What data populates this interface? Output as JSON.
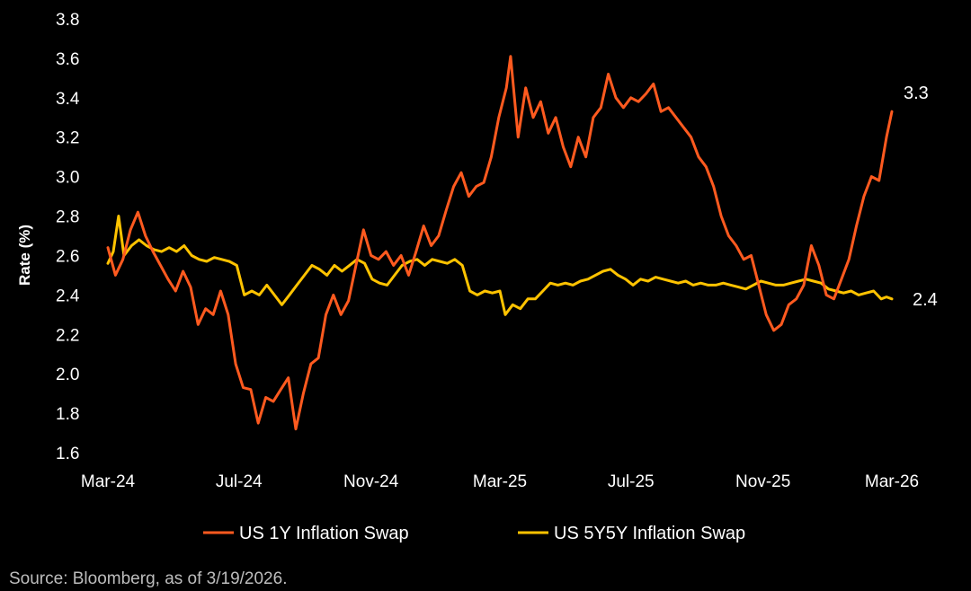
{
  "chart_data": {
    "type": "line",
    "title": "",
    "ylabel": "Rate (%)",
    "xlabel": "",
    "ylim": [
      1.6,
      3.8
    ],
    "yticks": [
      "1.6",
      "1.8",
      "2.0",
      "2.2",
      "2.4",
      "2.6",
      "2.8",
      "3.0",
      "3.2",
      "3.4",
      "3.6",
      "3.8"
    ],
    "xlim": [
      "2024-03-19",
      "2026-03-19"
    ],
    "xticks": [
      {
        "label": "Mar-24",
        "date": "2024-03-19"
      },
      {
        "label": "Jul-24",
        "date": "2024-07-19"
      },
      {
        "label": "Nov-24",
        "date": "2024-11-19"
      },
      {
        "label": "Mar-25",
        "date": "2025-03-19"
      },
      {
        "label": "Jul-25",
        "date": "2025-07-19"
      },
      {
        "label": "Nov-25",
        "date": "2025-11-19"
      },
      {
        "label": "Mar-26",
        "date": "2026-03-19"
      }
    ],
    "grid": false,
    "legend_position": "bottom",
    "series": [
      {
        "name": "US 1Y Inflation Swap",
        "color": "#FF5A1F",
        "end_label": "3.3",
        "points": [
          [
            "2024-03-19",
            2.64
          ],
          [
            "2024-03-26",
            2.5
          ],
          [
            "2024-04-02",
            2.58
          ],
          [
            "2024-04-09",
            2.73
          ],
          [
            "2024-04-16",
            2.82
          ],
          [
            "2024-04-23",
            2.7
          ],
          [
            "2024-04-30",
            2.62
          ],
          [
            "2024-05-07",
            2.55
          ],
          [
            "2024-05-14",
            2.48
          ],
          [
            "2024-05-21",
            2.42
          ],
          [
            "2024-05-28",
            2.52
          ],
          [
            "2024-06-04",
            2.44
          ],
          [
            "2024-06-11",
            2.25
          ],
          [
            "2024-06-18",
            2.33
          ],
          [
            "2024-06-25",
            2.3
          ],
          [
            "2024-07-02",
            2.42
          ],
          [
            "2024-07-09",
            2.3
          ],
          [
            "2024-07-16",
            2.05
          ],
          [
            "2024-07-23",
            1.93
          ],
          [
            "2024-07-30",
            1.92
          ],
          [
            "2024-08-06",
            1.75
          ],
          [
            "2024-08-13",
            1.88
          ],
          [
            "2024-08-20",
            1.86
          ],
          [
            "2024-08-27",
            1.92
          ],
          [
            "2024-09-03",
            1.98
          ],
          [
            "2024-09-10",
            1.72
          ],
          [
            "2024-09-17",
            1.9
          ],
          [
            "2024-09-24",
            2.05
          ],
          [
            "2024-10-01",
            2.08
          ],
          [
            "2024-10-08",
            2.3
          ],
          [
            "2024-10-15",
            2.4
          ],
          [
            "2024-10-22",
            2.3
          ],
          [
            "2024-10-29",
            2.37
          ],
          [
            "2024-11-05",
            2.55
          ],
          [
            "2024-11-12",
            2.73
          ],
          [
            "2024-11-19",
            2.6
          ],
          [
            "2024-11-26",
            2.58
          ],
          [
            "2024-12-03",
            2.62
          ],
          [
            "2024-12-10",
            2.55
          ],
          [
            "2024-12-17",
            2.6
          ],
          [
            "2024-12-24",
            2.5
          ],
          [
            "2024-12-31",
            2.62
          ],
          [
            "2025-01-07",
            2.75
          ],
          [
            "2025-01-14",
            2.65
          ],
          [
            "2025-01-21",
            2.7
          ],
          [
            "2025-01-28",
            2.83
          ],
          [
            "2025-02-04",
            2.95
          ],
          [
            "2025-02-11",
            3.02
          ],
          [
            "2025-02-18",
            2.9
          ],
          [
            "2025-02-25",
            2.95
          ],
          [
            "2025-03-04",
            2.97
          ],
          [
            "2025-03-11",
            3.1
          ],
          [
            "2025-03-18",
            3.3
          ],
          [
            "2025-03-25",
            3.45
          ],
          [
            "2025-03-29",
            3.61
          ],
          [
            "2025-04-05",
            3.2
          ],
          [
            "2025-04-12",
            3.45
          ],
          [
            "2025-04-19",
            3.3
          ],
          [
            "2025-04-26",
            3.38
          ],
          [
            "2025-05-03",
            3.22
          ],
          [
            "2025-05-10",
            3.3
          ],
          [
            "2025-05-17",
            3.15
          ],
          [
            "2025-05-24",
            3.05
          ],
          [
            "2025-05-31",
            3.2
          ],
          [
            "2025-06-07",
            3.1
          ],
          [
            "2025-06-14",
            3.3
          ],
          [
            "2025-06-21",
            3.35
          ],
          [
            "2025-06-28",
            3.52
          ],
          [
            "2025-07-05",
            3.4
          ],
          [
            "2025-07-12",
            3.35
          ],
          [
            "2025-07-19",
            3.4
          ],
          [
            "2025-07-26",
            3.38
          ],
          [
            "2025-08-02",
            3.42
          ],
          [
            "2025-08-09",
            3.47
          ],
          [
            "2025-08-16",
            3.33
          ],
          [
            "2025-08-23",
            3.35
          ],
          [
            "2025-08-30",
            3.3
          ],
          [
            "2025-09-06",
            3.25
          ],
          [
            "2025-09-13",
            3.2
          ],
          [
            "2025-09-20",
            3.1
          ],
          [
            "2025-09-27",
            3.05
          ],
          [
            "2025-10-04",
            2.95
          ],
          [
            "2025-10-11",
            2.8
          ],
          [
            "2025-10-18",
            2.7
          ],
          [
            "2025-10-25",
            2.65
          ],
          [
            "2025-11-01",
            2.58
          ],
          [
            "2025-11-08",
            2.6
          ],
          [
            "2025-11-15",
            2.45
          ],
          [
            "2025-11-22",
            2.3
          ],
          [
            "2025-11-29",
            2.22
          ],
          [
            "2025-12-06",
            2.25
          ],
          [
            "2025-12-13",
            2.35
          ],
          [
            "2025-12-20",
            2.38
          ],
          [
            "2025-12-27",
            2.45
          ],
          [
            "2026-01-03",
            2.65
          ],
          [
            "2026-01-10",
            2.55
          ],
          [
            "2026-01-17",
            2.4
          ],
          [
            "2026-01-24",
            2.38
          ],
          [
            "2026-01-31",
            2.48
          ],
          [
            "2026-02-07",
            2.58
          ],
          [
            "2026-02-14",
            2.75
          ],
          [
            "2026-02-21",
            2.9
          ],
          [
            "2026-02-28",
            3.0
          ],
          [
            "2026-03-07",
            2.98
          ],
          [
            "2026-03-14",
            3.2
          ],
          [
            "2026-03-19",
            3.33
          ]
        ]
      },
      {
        "name": "US 5Y5Y Inflation Swap",
        "color": "#FFC300",
        "end_label": "2.4",
        "points": [
          [
            "2024-03-19",
            2.56
          ],
          [
            "2024-03-24",
            2.62
          ],
          [
            "2024-03-29",
            2.8
          ],
          [
            "2024-04-03",
            2.6
          ],
          [
            "2024-04-10",
            2.65
          ],
          [
            "2024-04-17",
            2.68
          ],
          [
            "2024-04-24",
            2.65
          ],
          [
            "2024-05-01",
            2.63
          ],
          [
            "2024-05-08",
            2.62
          ],
          [
            "2024-05-15",
            2.64
          ],
          [
            "2024-05-22",
            2.62
          ],
          [
            "2024-05-29",
            2.65
          ],
          [
            "2024-06-05",
            2.6
          ],
          [
            "2024-06-12",
            2.58
          ],
          [
            "2024-06-19",
            2.57
          ],
          [
            "2024-06-26",
            2.59
          ],
          [
            "2024-07-03",
            2.58
          ],
          [
            "2024-07-10",
            2.57
          ],
          [
            "2024-07-17",
            2.55
          ],
          [
            "2024-07-24",
            2.4
          ],
          [
            "2024-07-31",
            2.42
          ],
          [
            "2024-08-07",
            2.4
          ],
          [
            "2024-08-14",
            2.45
          ],
          [
            "2024-08-21",
            2.4
          ],
          [
            "2024-08-28",
            2.35
          ],
          [
            "2024-09-04",
            2.4
          ],
          [
            "2024-09-11",
            2.45
          ],
          [
            "2024-09-18",
            2.5
          ],
          [
            "2024-09-25",
            2.55
          ],
          [
            "2024-10-02",
            2.53
          ],
          [
            "2024-10-09",
            2.5
          ],
          [
            "2024-10-16",
            2.55
          ],
          [
            "2024-10-23",
            2.52
          ],
          [
            "2024-10-30",
            2.55
          ],
          [
            "2024-11-06",
            2.58
          ],
          [
            "2024-11-13",
            2.56
          ],
          [
            "2024-11-20",
            2.48
          ],
          [
            "2024-11-27",
            2.46
          ],
          [
            "2024-12-04",
            2.45
          ],
          [
            "2024-12-11",
            2.5
          ],
          [
            "2024-12-18",
            2.55
          ],
          [
            "2024-12-25",
            2.57
          ],
          [
            "2025-01-01",
            2.58
          ],
          [
            "2025-01-08",
            2.55
          ],
          [
            "2025-01-15",
            2.58
          ],
          [
            "2025-01-22",
            2.57
          ],
          [
            "2025-01-29",
            2.56
          ],
          [
            "2025-02-05",
            2.58
          ],
          [
            "2025-02-12",
            2.55
          ],
          [
            "2025-02-19",
            2.42
          ],
          [
            "2025-02-26",
            2.4
          ],
          [
            "2025-03-05",
            2.42
          ],
          [
            "2025-03-12",
            2.41
          ],
          [
            "2025-03-19",
            2.42
          ],
          [
            "2025-03-24",
            2.3
          ],
          [
            "2025-03-31",
            2.35
          ],
          [
            "2025-04-07",
            2.33
          ],
          [
            "2025-04-14",
            2.38
          ],
          [
            "2025-04-21",
            2.38
          ],
          [
            "2025-04-28",
            2.42
          ],
          [
            "2025-05-05",
            2.46
          ],
          [
            "2025-05-12",
            2.45
          ],
          [
            "2025-05-19",
            2.46
          ],
          [
            "2025-05-26",
            2.45
          ],
          [
            "2025-06-02",
            2.47
          ],
          [
            "2025-06-09",
            2.48
          ],
          [
            "2025-06-16",
            2.5
          ],
          [
            "2025-06-23",
            2.52
          ],
          [
            "2025-06-30",
            2.53
          ],
          [
            "2025-07-07",
            2.5
          ],
          [
            "2025-07-14",
            2.48
          ],
          [
            "2025-07-21",
            2.45
          ],
          [
            "2025-07-28",
            2.48
          ],
          [
            "2025-08-04",
            2.47
          ],
          [
            "2025-08-11",
            2.49
          ],
          [
            "2025-08-18",
            2.48
          ],
          [
            "2025-08-25",
            2.47
          ],
          [
            "2025-09-01",
            2.46
          ],
          [
            "2025-09-08",
            2.47
          ],
          [
            "2025-09-15",
            2.45
          ],
          [
            "2025-09-22",
            2.46
          ],
          [
            "2025-09-29",
            2.45
          ],
          [
            "2025-10-06",
            2.45
          ],
          [
            "2025-10-13",
            2.46
          ],
          [
            "2025-10-20",
            2.45
          ],
          [
            "2025-10-27",
            2.44
          ],
          [
            "2025-11-03",
            2.43
          ],
          [
            "2025-11-10",
            2.45
          ],
          [
            "2025-11-17",
            2.47
          ],
          [
            "2025-11-24",
            2.46
          ],
          [
            "2025-12-01",
            2.45
          ],
          [
            "2025-12-08",
            2.45
          ],
          [
            "2025-12-15",
            2.46
          ],
          [
            "2025-12-22",
            2.47
          ],
          [
            "2025-12-29",
            2.48
          ],
          [
            "2026-01-05",
            2.47
          ],
          [
            "2026-01-12",
            2.46
          ],
          [
            "2026-01-19",
            2.43
          ],
          [
            "2026-01-26",
            2.42
          ],
          [
            "2026-02-02",
            2.41
          ],
          [
            "2026-02-09",
            2.42
          ],
          [
            "2026-02-16",
            2.4
          ],
          [
            "2026-02-23",
            2.41
          ],
          [
            "2026-03-02",
            2.42
          ],
          [
            "2026-03-09",
            2.38
          ],
          [
            "2026-03-14",
            2.39
          ],
          [
            "2026-03-19",
            2.38
          ]
        ]
      }
    ]
  },
  "source": "Source: Bloomberg, as of 3/19/2026."
}
